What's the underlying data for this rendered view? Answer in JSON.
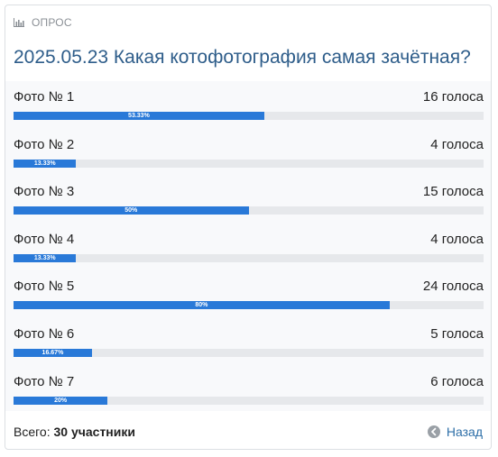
{
  "header": {
    "label": "ОПРОС"
  },
  "poll": {
    "title": "2025.05.23 Какая котофотография самая зачётная?",
    "options": [
      {
        "label": "Фото № 1",
        "votes": "16 голоса",
        "percent_label": "53.33%",
        "fraction": 0.5333
      },
      {
        "label": "Фото № 2",
        "votes": "4 голоса",
        "percent_label": "13.33%",
        "fraction": 0.1333
      },
      {
        "label": "Фото № 3",
        "votes": "15 голоса",
        "percent_label": "50%",
        "fraction": 0.5
      },
      {
        "label": "Фото № 4",
        "votes": "4 голоса",
        "percent_label": "13.33%",
        "fraction": 0.1333
      },
      {
        "label": "Фото № 5",
        "votes": "24 голоса",
        "percent_label": "80%",
        "fraction": 0.8
      },
      {
        "label": "Фото № 6",
        "votes": "5 голоса",
        "percent_label": "16.67%",
        "fraction": 0.1667
      },
      {
        "label": "Фото № 7",
        "votes": "6 голоса",
        "percent_label": "20%",
        "fraction": 0.2
      }
    ]
  },
  "footer": {
    "total_prefix": "Всего: ",
    "total_value": "30 участники",
    "back_label": "Назад"
  },
  "colors": {
    "bar": "#2979d8",
    "title": "#2e5d8a",
    "link": "#2e6fa8"
  },
  "icons": {
    "header": "bar-chart-icon",
    "back": "arrow-left-circle-icon"
  }
}
